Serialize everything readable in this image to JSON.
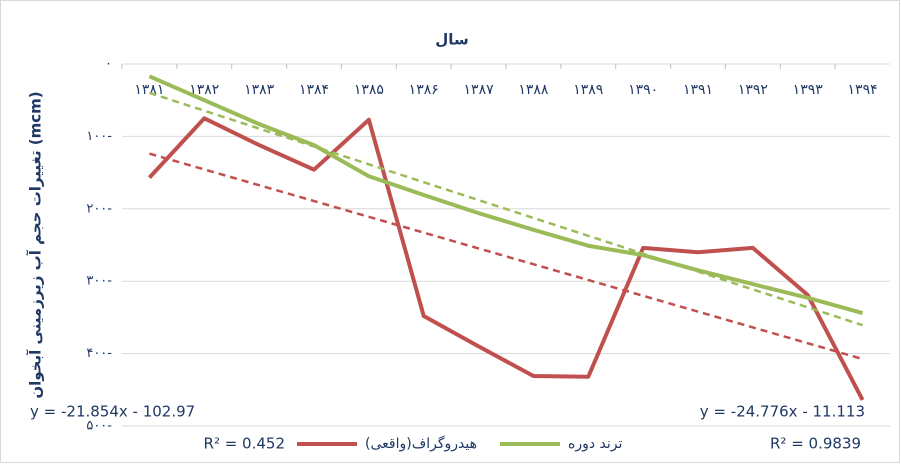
{
  "chart_data": {
    "type": "line",
    "title": "سال",
    "y_label": "تغییرات حجم آب زیرزمینی آبخوان (mcm)",
    "categories": [
      "۱۳۸۱",
      "۱۳۸۲",
      "۱۳۸۳",
      "۱۳۸۴",
      "۱۳۸۵",
      "۱۳۸۶",
      "۱۳۸۷",
      "۱۳۸۸",
      "۱۳۸۹",
      "۱۳۹۰",
      "۱۳۹۱",
      "۱۳۹۲",
      "۱۳۹۳",
      "۱۳۹۴"
    ],
    "series": [
      {
        "name": "هیدروگراف(واقعی)",
        "color": "#c0504d",
        "trendline": true,
        "trend_equation": "y = -21.854x - 102.97",
        "r_squared": "R² = 0.452",
        "values": [
          -157,
          -75,
          -112,
          -146,
          -77,
          -348,
          -390,
          -431,
          -432,
          -254,
          -260,
          -254,
          -319,
          -464
        ]
      },
      {
        "name": "ترند دوره",
        "color": "#9bbb59",
        "trendline": true,
        "trend_equation": "y = -24.776x - 11.113",
        "r_squared": "R² = 0.9839",
        "values": [
          -17,
          -50,
          -83,
          -112,
          -155,
          -181,
          -206,
          -229,
          -251,
          -264,
          -285,
          -304,
          -323,
          -344
        ]
      }
    ],
    "ylim": [
      0,
      -500
    ],
    "yticks": [
      {
        "value": 0,
        "label": "۰"
      },
      {
        "value": -100,
        "label": "-۱۰۰"
      },
      {
        "value": -200,
        "label": "-۲۰۰"
      },
      {
        "value": -300,
        "label": "-۳۰۰"
      },
      {
        "value": -400,
        "label": "-۴۰۰"
      },
      {
        "value": -500,
        "label": "-۵۰۰"
      }
    ],
    "grid": true,
    "legend": "bottom"
  }
}
